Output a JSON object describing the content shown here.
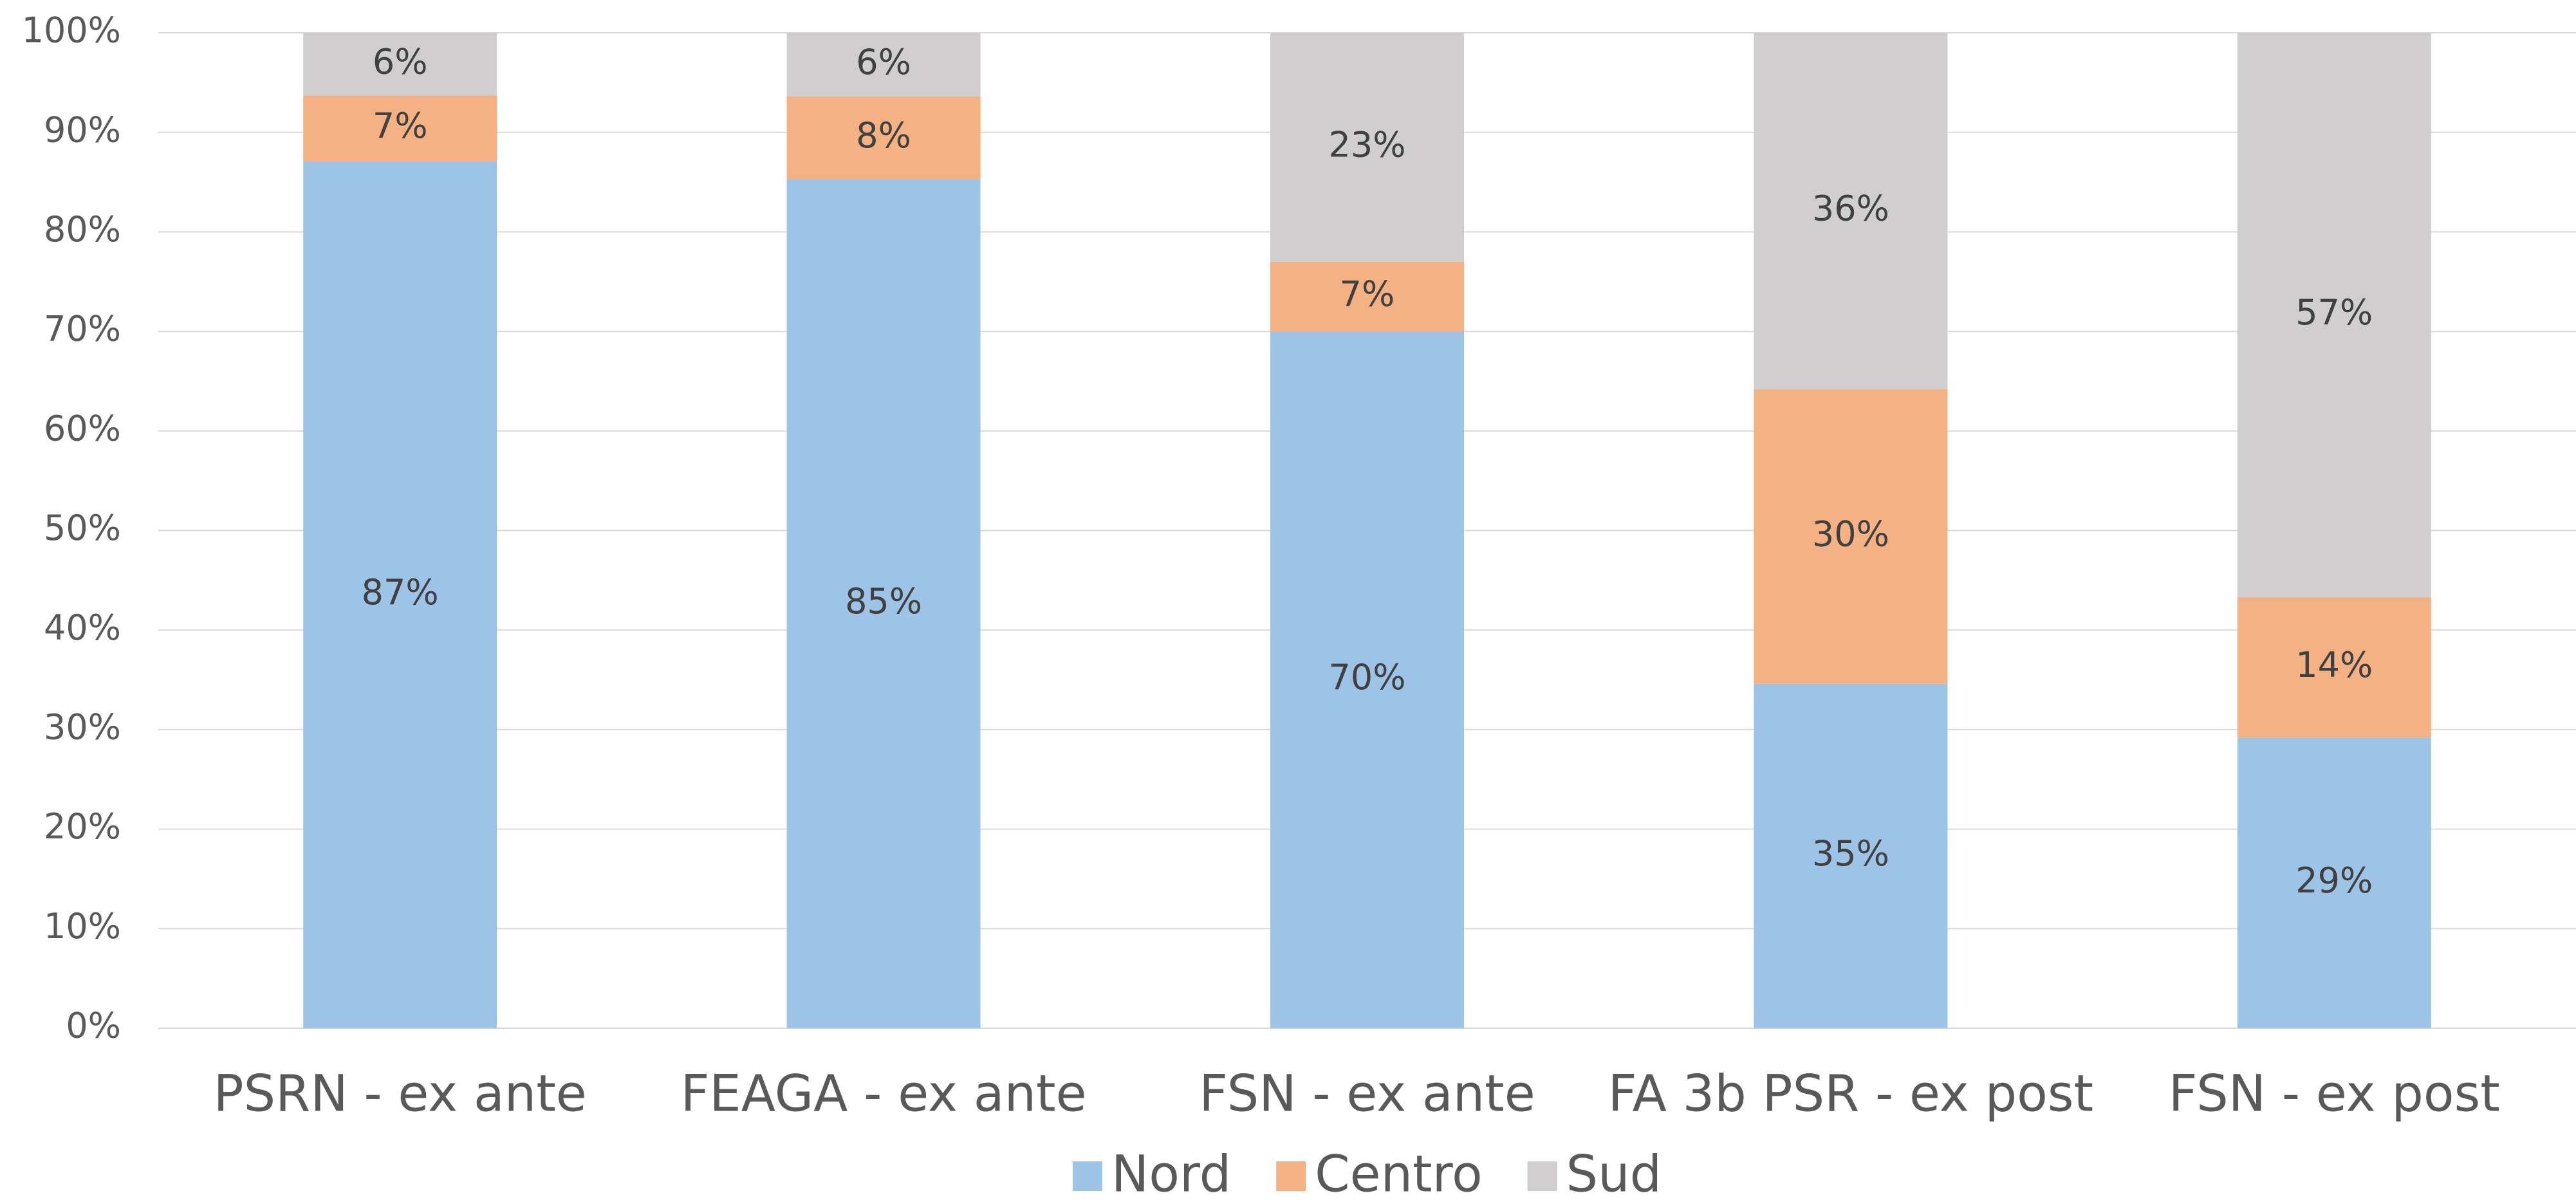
{
  "chart_data": {
    "type": "stacked_bar",
    "categories": [
      "PSRN - ex ante",
      "FEAGA - ex ante",
      "FSN - ex ante",
      "FA 3b PSR - ex post",
      "FSN - ex post"
    ],
    "series": [
      {
        "name": "Nord",
        "color": "#9dc3e6",
        "values": [
          87.1,
          85.3,
          70.0,
          34.6,
          29.2
        ],
        "value_labels": [
          "87%",
          "85%",
          "70%",
          "35%",
          "29%"
        ]
      },
      {
        "name": "Centro",
        "color": "#f4b183",
        "values": [
          6.6,
          8.3,
          7.0,
          29.6,
          14.1
        ],
        "value_labels": [
          "7%",
          "8%",
          "7%",
          "30%",
          "14%"
        ]
      },
      {
        "name": "Sud",
        "color": "#d0cece",
        "values": [
          6.3,
          6.4,
          23.0,
          35.8,
          56.7
        ],
        "value_labels": [
          "6%",
          "6%",
          "23%",
          "36%",
          "57%"
        ]
      }
    ],
    "ylim": [
      0,
      100
    ],
    "yticks": [
      {
        "value": 0,
        "label": "0%"
      },
      {
        "value": 10,
        "label": "10%"
      },
      {
        "value": 20,
        "label": "20%"
      },
      {
        "value": 30,
        "label": "30%"
      },
      {
        "value": 40,
        "label": "40%"
      },
      {
        "value": 50,
        "label": "50%"
      },
      {
        "value": 60,
        "label": "60%"
      },
      {
        "value": 70,
        "label": "70%"
      },
      {
        "value": 80,
        "label": "80%"
      },
      {
        "value": 90,
        "label": "90%"
      },
      {
        "value": 100,
        "label": "100%"
      }
    ],
    "grid": true,
    "legend": "bottom"
  }
}
